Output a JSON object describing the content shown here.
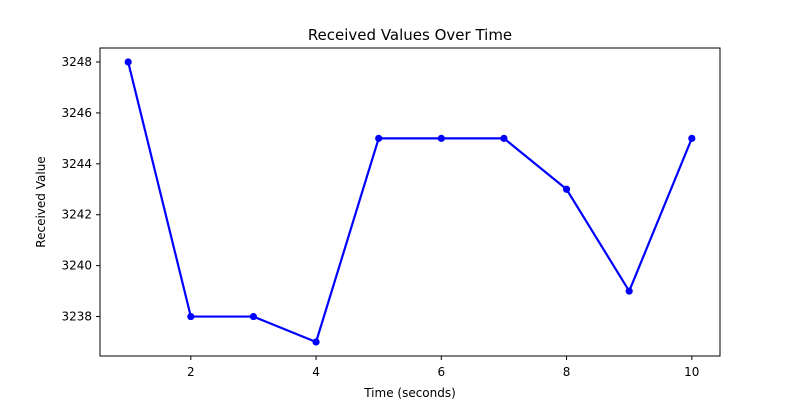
{
  "chart_data": {
    "type": "line",
    "title": "Received Values Over Time",
    "xlabel": "Time (seconds)",
    "ylabel": "Received Value",
    "x": [
      1,
      2,
      3,
      4,
      5,
      6,
      7,
      8,
      9,
      10
    ],
    "series": [
      {
        "values": [
          3248,
          3238,
          3238,
          3237,
          3245,
          3245,
          3245,
          3243,
          3239,
          3245
        ]
      }
    ],
    "xlim": [
      0.55,
      10.45
    ],
    "ylim": [
      3236.45,
      3248.55
    ],
    "xticks": [
      2,
      4,
      6,
      8,
      10
    ],
    "yticks": [
      3238,
      3240,
      3242,
      3244,
      3246,
      3248
    ],
    "grid": false,
    "line_color": "#0000ff",
    "marker": "circle"
  }
}
